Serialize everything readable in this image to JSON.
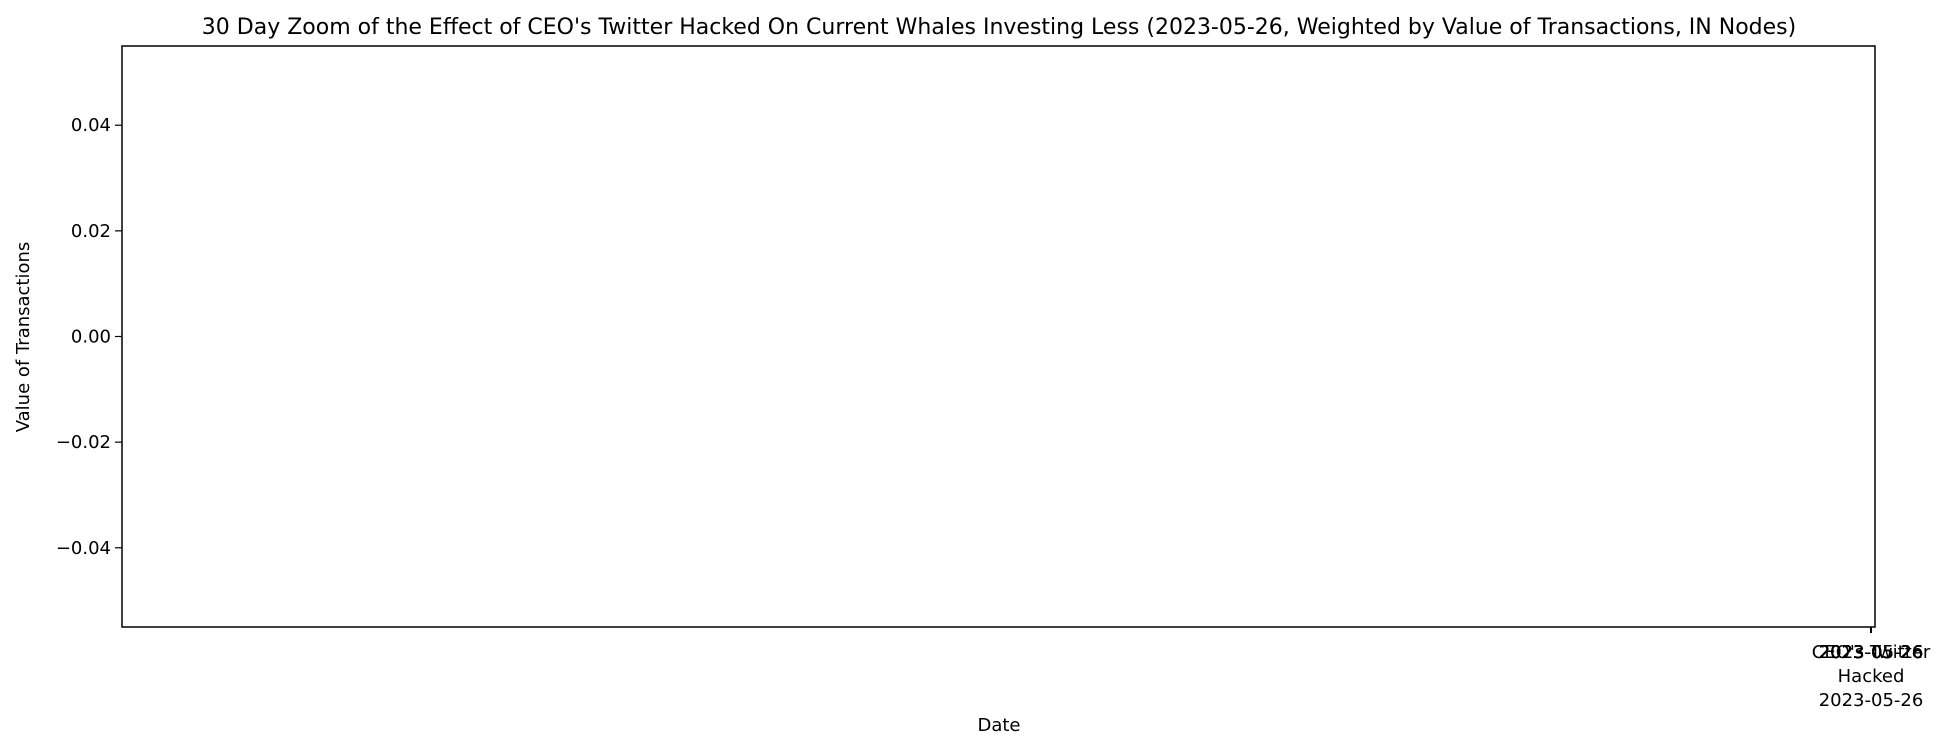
{
  "chart_data": {
    "type": "line",
    "title": "30 Day Zoom of the Effect of CEO's Twitter Hacked On Current Whales Investing Less (2023-05-26, Weighted by Value of Transactions, IN Nodes)",
    "xlabel": "Date",
    "ylabel": "Value of Transactions",
    "ylim": [
      -0.055,
      0.055
    ],
    "yticks": [
      0.04,
      0.02,
      0.0,
      -0.02,
      -0.04
    ],
    "ytick_labels": [
      "0.04",
      "0.02",
      "0.00",
      "−0.02",
      "−0.04"
    ],
    "xticks": [
      {
        "label": "2023-05-26"
      },
      {
        "label": "2023-05-26"
      },
      {
        "label": "2023-05-26"
      },
      {
        "label": "2023-05-26"
      },
      {
        "label": "2023-05-26"
      },
      {
        "label": "2023-05-26"
      },
      {
        "label": "2023-05-26"
      },
      {
        "label": "2023-05-26"
      },
      {
        "label": "2023-05-26"
      },
      {
        "label": "2023-05-26"
      },
      {
        "label": "2023-05-26"
      },
      {
        "label": "2023-05-26"
      },
      {
        "label": "2023-05-26"
      },
      {
        "label": "2023-05-26"
      },
      {
        "label": "2023-05-26"
      }
    ],
    "annotation_lines": [
      "CEO's Twitter",
      "Hacked",
      "2023-05-26"
    ],
    "series": [],
    "grid": false,
    "legend": "none"
  }
}
